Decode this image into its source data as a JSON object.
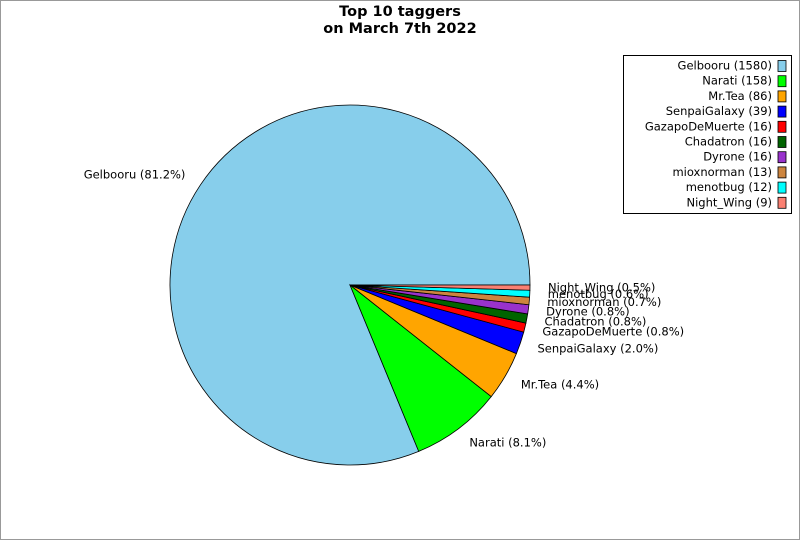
{
  "chart_data": {
    "type": "pie",
    "title": [
      "Top 10 taggers",
      "on March 7th 2022"
    ],
    "legend_labels": [
      "Gelbooru (1580)",
      "Narati (158)",
      "Mr.Tea (86)",
      "SenpaiGalaxy (39)",
      "GazapoDeMuerte (16)",
      "Chadatron (16)",
      "Dyrone (16)",
      "mioxnorman (13)",
      "menotbug (12)",
      "Night_Wing (9)"
    ],
    "values": [
      1580,
      158,
      86,
      39,
      16,
      16,
      16,
      13,
      12,
      9
    ],
    "value_labels": [
      "Gelbooru (81.2%)",
      "Narati (8.1%)",
      "Mr.Tea (4.4%)",
      "SenpaiGalaxy (2.0%)",
      "GazapoDeMuerte (0.8%)",
      "Chadatron (0.8%)",
      "Dyrone (0.8%)",
      "mioxnorman (0.7%)",
      "menotbug (0.6%)",
      "Night_Wing (0.5%)"
    ],
    "colors": [
      "#87ceeb",
      "#00ff00",
      "#ffa500",
      "#0000ff",
      "#ff0000",
      "#006400",
      "#9932cc",
      "#cd853f",
      "#00ffff",
      "#fa8072"
    ],
    "legend": "upper right"
  }
}
